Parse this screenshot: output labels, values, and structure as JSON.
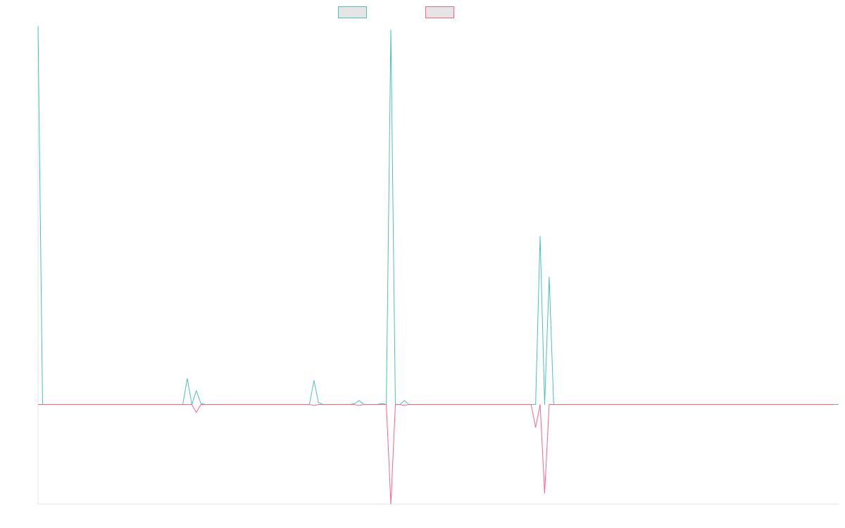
{
  "chart_data": {
    "type": "line",
    "title": "",
    "xlabel": "",
    "ylabel": "",
    "legend_position": "top-center",
    "grid": false,
    "ylim": [
      -1.0,
      3.8
    ],
    "series": [
      {
        "color": "#4bc0c0",
        "values": [
          3.8,
          0,
          0,
          0,
          0,
          0,
          0,
          0,
          0,
          0,
          0,
          0,
          0,
          0,
          0,
          0,
          0,
          0,
          0,
          0,
          0,
          0,
          0,
          0,
          0,
          0,
          0,
          0,
          0,
          0,
          0,
          0,
          0,
          0.26,
          0,
          0.14,
          0.01,
          0,
          0,
          0,
          0,
          0,
          0,
          0,
          0,
          0,
          0,
          0,
          0,
          0,
          0,
          0,
          0,
          0,
          0,
          0,
          0,
          0,
          0,
          0,
          0,
          0.24,
          0.02,
          0,
          0,
          0,
          0,
          0,
          0,
          0,
          0.01,
          0.04,
          0,
          0,
          0,
          0,
          0.01,
          0,
          3.76,
          0,
          0,
          0.04,
          0,
          0,
          0,
          0,
          0,
          0,
          0,
          0,
          0,
          0,
          0,
          0,
          0,
          0,
          0,
          0,
          0,
          0,
          0,
          0,
          0,
          0,
          0,
          0,
          0,
          0,
          0,
          0,
          0,
          1.69,
          0,
          1.28,
          0,
          0,
          0,
          0,
          0,
          0,
          0,
          0,
          0,
          0,
          0,
          0,
          0,
          0,
          0,
          0,
          0,
          0,
          0,
          0,
          0,
          0,
          0,
          0,
          0,
          0,
          0,
          0,
          0,
          0,
          0,
          0,
          0,
          0,
          0,
          0,
          0,
          0,
          0,
          0,
          0,
          0,
          0,
          0,
          0,
          0,
          0,
          0,
          0,
          0,
          0,
          0,
          0,
          0,
          0,
          0,
          0,
          0,
          0,
          0,
          0,
          0,
          0,
          0
        ]
      },
      {
        "color": "#ff6384",
        "values": [
          0,
          0,
          0,
          0,
          0,
          0,
          0,
          0,
          0,
          0,
          0,
          0,
          0,
          0,
          0,
          0,
          0,
          0,
          0,
          0,
          0,
          0,
          0,
          0,
          0,
          0,
          0,
          0,
          0,
          0,
          0,
          0,
          0,
          0,
          0,
          -0.08,
          0,
          0,
          0,
          0,
          0,
          0,
          0,
          0,
          0,
          0,
          0,
          0,
          0,
          0,
          0,
          0,
          0,
          0,
          0,
          0,
          0,
          0,
          0,
          0,
          0,
          -0.01,
          0,
          0,
          0,
          0,
          0,
          0,
          0,
          0,
          0,
          -0.01,
          0,
          0,
          0,
          0,
          0,
          0,
          -1.0,
          0,
          0,
          -0.01,
          0,
          0,
          0,
          0,
          0,
          0,
          0,
          0,
          0,
          0,
          0,
          0,
          0,
          0,
          0,
          0,
          0,
          0,
          0,
          0,
          0,
          0,
          0,
          0,
          0,
          0,
          0,
          0,
          -0.23,
          0,
          -0.89,
          0,
          0,
          0,
          0,
          0,
          0,
          0,
          0,
          0,
          0,
          0,
          0,
          0,
          0,
          0,
          0,
          0,
          0,
          0,
          0,
          0,
          0,
          0,
          0,
          0,
          0,
          0,
          0,
          0,
          0,
          0,
          0,
          0,
          0,
          0,
          0,
          0,
          0,
          0,
          0,
          0,
          0,
          0,
          0,
          0,
          0,
          0,
          0,
          0,
          0,
          0,
          0,
          0,
          0,
          0,
          0,
          0,
          0,
          0,
          0,
          0,
          0,
          0,
          0
        ]
      }
    ]
  }
}
